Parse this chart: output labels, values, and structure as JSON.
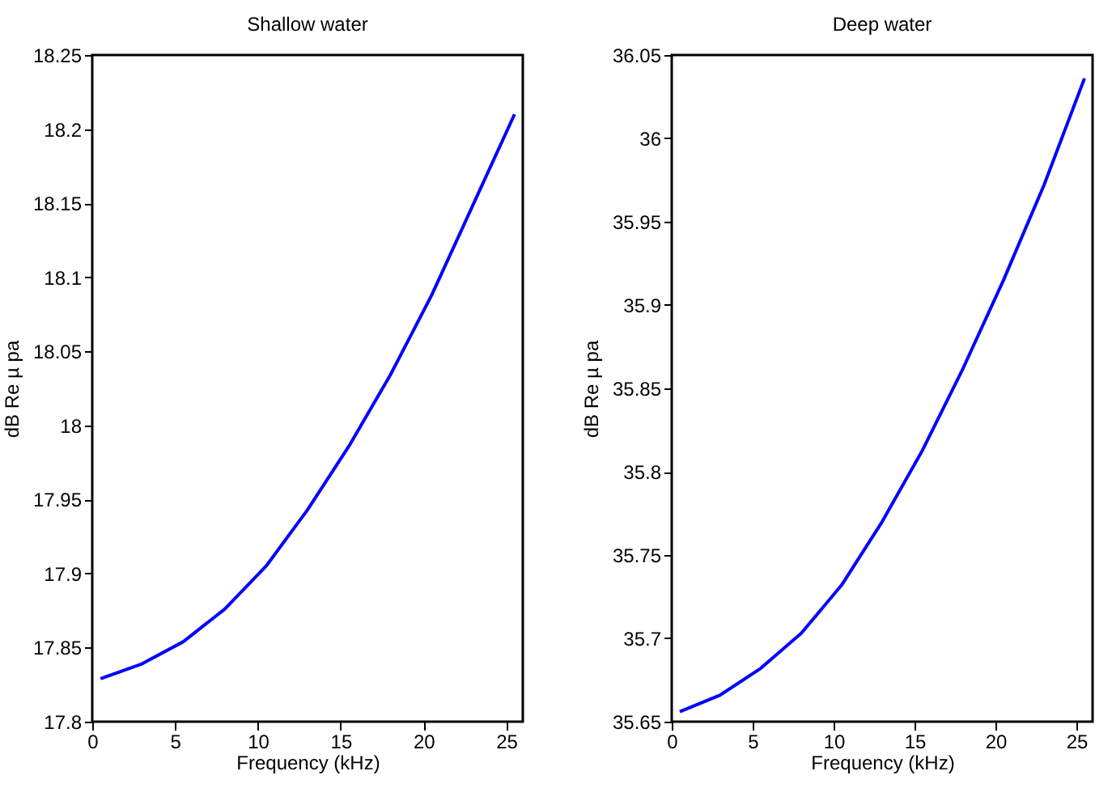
{
  "chart_data": [
    {
      "type": "line",
      "title": "Shallow water",
      "xlabel": "Frequency (kHz)",
      "ylabel": "dB Re µ pa",
      "x": [
        0.5,
        3,
        5.5,
        8,
        10.5,
        13,
        15.5,
        18,
        20.5,
        23,
        25.5
      ],
      "series": [
        {
          "color": "#0000ff",
          "values": [
            17.829,
            17.839,
            17.854,
            17.876,
            17.905,
            17.943,
            17.986,
            18.034,
            18.088,
            18.149,
            18.21
          ]
        }
      ],
      "xlim": [
        0,
        26
      ],
      "xticks": [
        0,
        5,
        10,
        15,
        20,
        25
      ],
      "ylim": [
        17.8,
        18.25
      ],
      "yticks": [
        17.8,
        17.85,
        17.9,
        17.95,
        18,
        18.05,
        18.1,
        18.15,
        18.2,
        18.25
      ],
      "grid": false
    },
    {
      "type": "line",
      "title": "Deep water",
      "xlabel": "Frequency (kHz)",
      "ylabel": "dB Re µ pa",
      "x": [
        0.5,
        3,
        5.5,
        8,
        10.5,
        13,
        15.5,
        18,
        20.5,
        23,
        25.5
      ],
      "series": [
        {
          "color": "#0000ff",
          "values": [
            35.656,
            35.666,
            35.682,
            35.703,
            35.732,
            35.77,
            35.813,
            35.862,
            35.915,
            35.972,
            36.036
          ]
        }
      ],
      "xlim": [
        0,
        26
      ],
      "xticks": [
        0,
        5,
        10,
        15,
        20,
        25
      ],
      "ylim": [
        35.65,
        36.05
      ],
      "yticks": [
        35.65,
        35.7,
        35.75,
        35.8,
        35.85,
        35.9,
        35.95,
        36,
        36.05
      ],
      "grid": false
    }
  ]
}
